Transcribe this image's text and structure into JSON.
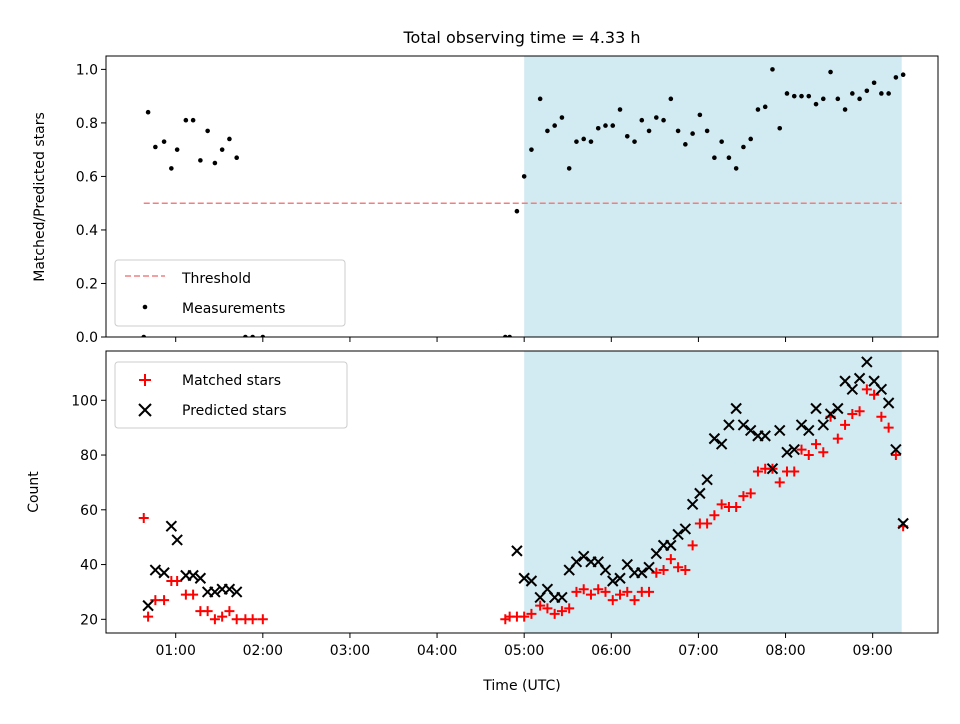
{
  "chart_data": [
    {
      "type": "scatter",
      "title": "Total observing time = 4.33 h",
      "ylabel": "Matched/Predicted stars",
      "xlabel": "",
      "ylim": [
        0.0,
        1.05
      ],
      "yticks": [
        0.0,
        0.2,
        0.4,
        0.6,
        0.8,
        1.0
      ],
      "ytick_labels": [
        "0.0",
        "0.2",
        "0.4",
        "0.6",
        "0.8",
        "1.0"
      ],
      "shaded_interval": [
        "05:00",
        "09:20"
      ],
      "shade_color": "#add8e6",
      "legend": {
        "placement": "lower-left",
        "entries": [
          "Threshold",
          "Measurements"
        ]
      },
      "threshold": {
        "name": "Threshold",
        "value": 0.5,
        "x": [
          "00:38",
          "09:20"
        ],
        "color": "#f08080",
        "style": "dashed"
      },
      "series": [
        {
          "name": "Measurements",
          "color": "#000000",
          "marker": "dot",
          "points": [
            [
              "00:38",
              0.0
            ],
            [
              "00:41",
              0.84
            ],
            [
              "00:46",
              0.71
            ],
            [
              "00:52",
              0.73
            ],
            [
              "00:57",
              0.63
            ],
            [
              "01:01",
              0.7
            ],
            [
              "01:07",
              0.81
            ],
            [
              "01:12",
              0.81
            ],
            [
              "01:17",
              0.66
            ],
            [
              "01:22",
              0.77
            ],
            [
              "01:27",
              0.65
            ],
            [
              "01:32",
              0.7
            ],
            [
              "01:37",
              0.74
            ],
            [
              "01:42",
              0.67
            ],
            [
              "01:48",
              0.0
            ],
            [
              "01:53",
              0.0
            ],
            [
              "02:00",
              0.0
            ],
            [
              "04:47",
              0.0
            ],
            [
              "04:50",
              0.0
            ],
            [
              "04:55",
              0.47
            ],
            [
              "05:00",
              0.6
            ],
            [
              "05:05",
              0.7
            ],
            [
              "05:11",
              0.89
            ],
            [
              "05:16",
              0.77
            ],
            [
              "05:21",
              0.79
            ],
            [
              "05:26",
              0.82
            ],
            [
              "05:31",
              0.63
            ],
            [
              "05:36",
              0.73
            ],
            [
              "05:41",
              0.74
            ],
            [
              "05:46",
              0.73
            ],
            [
              "05:51",
              0.78
            ],
            [
              "05:56",
              0.79
            ],
            [
              "06:01",
              0.79
            ],
            [
              "06:06",
              0.85
            ],
            [
              "06:11",
              0.75
            ],
            [
              "06:16",
              0.73
            ],
            [
              "06:21",
              0.81
            ],
            [
              "06:26",
              0.77
            ],
            [
              "06:31",
              0.82
            ],
            [
              "06:36",
              0.81
            ],
            [
              "06:41",
              0.89
            ],
            [
              "06:46",
              0.77
            ],
            [
              "06:51",
              0.72
            ],
            [
              "06:56",
              0.76
            ],
            [
              "07:01",
              0.83
            ],
            [
              "07:06",
              0.77
            ],
            [
              "07:11",
              0.67
            ],
            [
              "07:16",
              0.73
            ],
            [
              "07:21",
              0.67
            ],
            [
              "07:26",
              0.63
            ],
            [
              "07:31",
              0.71
            ],
            [
              "07:36",
              0.74
            ],
            [
              "07:41",
              0.85
            ],
            [
              "07:46",
              0.86
            ],
            [
              "07:51",
              1.0
            ],
            [
              "07:56",
              0.78
            ],
            [
              "08:01",
              0.91
            ],
            [
              "08:06",
              0.9
            ],
            [
              "08:11",
              0.9
            ],
            [
              "08:16",
              0.9
            ],
            [
              "08:21",
              0.87
            ],
            [
              "08:26",
              0.89
            ],
            [
              "08:31",
              0.99
            ],
            [
              "08:36",
              0.89
            ],
            [
              "08:41",
              0.85
            ],
            [
              "08:46",
              0.91
            ],
            [
              "08:51",
              0.89
            ],
            [
              "08:56",
              0.92
            ],
            [
              "09:01",
              0.95
            ],
            [
              "09:06",
              0.91
            ],
            [
              "09:11",
              0.91
            ],
            [
              "09:16",
              0.97
            ],
            [
              "09:21",
              0.98
            ]
          ]
        }
      ]
    },
    {
      "type": "scatter",
      "title": "",
      "xlabel": "Time (UTC)",
      "ylabel": "Count",
      "xlim": [
        "00:12",
        "09:45"
      ],
      "ylim": [
        15,
        118
      ],
      "xticks": [
        "01:00",
        "02:00",
        "03:00",
        "04:00",
        "05:00",
        "06:00",
        "07:00",
        "08:00",
        "09:00"
      ],
      "yticks": [
        20,
        40,
        60,
        80,
        100
      ],
      "ytick_labels": [
        "20",
        "40",
        "60",
        "80",
        "100"
      ],
      "shaded_interval": [
        "05:00",
        "09:20"
      ],
      "shade_color": "#add8e6",
      "legend": {
        "placement": "upper-left",
        "entries": [
          "Matched stars",
          "Predicted stars"
        ]
      },
      "series": [
        {
          "name": "Matched stars",
          "color": "#ff0000",
          "marker": "plus",
          "points": [
            [
              "00:38",
              57
            ],
            [
              "00:41",
              21
            ],
            [
              "00:46",
              27
            ],
            [
              "00:52",
              27
            ],
            [
              "00:57",
              34
            ],
            [
              "01:01",
              34
            ],
            [
              "01:07",
              29
            ],
            [
              "01:12",
              29
            ],
            [
              "01:17",
              23
            ],
            [
              "01:22",
              23
            ],
            [
              "01:27",
              20
            ],
            [
              "01:32",
              21
            ],
            [
              "01:37",
              23
            ],
            [
              "01:42",
              20
            ],
            [
              "01:48",
              20
            ],
            [
              "01:53",
              20
            ],
            [
              "02:00",
              20
            ],
            [
              "04:47",
              20
            ],
            [
              "04:50",
              21
            ],
            [
              "04:55",
              21
            ],
            [
              "05:00",
              21
            ],
            [
              "05:05",
              22
            ],
            [
              "05:11",
              25
            ],
            [
              "05:16",
              24
            ],
            [
              "05:21",
              22
            ],
            [
              "05:26",
              23
            ],
            [
              "05:31",
              24
            ],
            [
              "05:36",
              30
            ],
            [
              "05:41",
              31
            ],
            [
              "05:46",
              29
            ],
            [
              "05:51",
              31
            ],
            [
              "05:56",
              30
            ],
            [
              "06:01",
              27
            ],
            [
              "06:06",
              29
            ],
            [
              "06:11",
              30
            ],
            [
              "06:16",
              27
            ],
            [
              "06:21",
              30
            ],
            [
              "06:26",
              30
            ],
            [
              "06:31",
              37
            ],
            [
              "06:36",
              38
            ],
            [
              "06:41",
              42
            ],
            [
              "06:46",
              39
            ],
            [
              "06:51",
              38
            ],
            [
              "06:56",
              47
            ],
            [
              "07:01",
              55
            ],
            [
              "07:06",
              55
            ],
            [
              "07:11",
              58
            ],
            [
              "07:16",
              62
            ],
            [
              "07:21",
              61
            ],
            [
              "07:26",
              61
            ],
            [
              "07:31",
              65
            ],
            [
              "07:36",
              66
            ],
            [
              "07:41",
              74
            ],
            [
              "07:46",
              75
            ],
            [
              "07:51",
              75
            ],
            [
              "07:56",
              70
            ],
            [
              "08:01",
              74
            ],
            [
              "08:06",
              74
            ],
            [
              "08:11",
              82
            ],
            [
              "08:16",
              80
            ],
            [
              "08:21",
              84
            ],
            [
              "08:26",
              81
            ],
            [
              "08:31",
              94
            ],
            [
              "08:36",
              86
            ],
            [
              "08:41",
              91
            ],
            [
              "08:46",
              95
            ],
            [
              "08:51",
              96
            ],
            [
              "08:56",
              104
            ],
            [
              "09:01",
              102
            ],
            [
              "09:06",
              94
            ],
            [
              "09:11",
              90
            ],
            [
              "09:16",
              80
            ],
            [
              "09:21",
              54
            ]
          ]
        },
        {
          "name": "Predicted stars",
          "color": "#000000",
          "marker": "x",
          "points": [
            [
              "00:41",
              25
            ],
            [
              "00:46",
              38
            ],
            [
              "00:52",
              37
            ],
            [
              "00:57",
              54
            ],
            [
              "01:01",
              49
            ],
            [
              "01:07",
              36
            ],
            [
              "01:12",
              36
            ],
            [
              "01:17",
              35
            ],
            [
              "01:22",
              30
            ],
            [
              "01:27",
              30
            ],
            [
              "01:32",
              31
            ],
            [
              "01:37",
              31
            ],
            [
              "01:42",
              30
            ],
            [
              "04:55",
              45
            ],
            [
              "05:00",
              35
            ],
            [
              "05:05",
              34
            ],
            [
              "05:11",
              28
            ],
            [
              "05:16",
              31
            ],
            [
              "05:21",
              28
            ],
            [
              "05:26",
              28
            ],
            [
              "05:31",
              38
            ],
            [
              "05:36",
              41
            ],
            [
              "05:41",
              43
            ],
            [
              "05:46",
              41
            ],
            [
              "05:51",
              41
            ],
            [
              "05:56",
              38
            ],
            [
              "06:01",
              34
            ],
            [
              "06:06",
              35
            ],
            [
              "06:11",
              40
            ],
            [
              "06:16",
              37
            ],
            [
              "06:21",
              37
            ],
            [
              "06:26",
              39
            ],
            [
              "06:31",
              44
            ],
            [
              "06:36",
              47
            ],
            [
              "06:41",
              47
            ],
            [
              "06:46",
              51
            ],
            [
              "06:51",
              53
            ],
            [
              "06:56",
              62
            ],
            [
              "07:01",
              66
            ],
            [
              "07:06",
              71
            ],
            [
              "07:11",
              86
            ],
            [
              "07:16",
              84
            ],
            [
              "07:21",
              91
            ],
            [
              "07:26",
              97
            ],
            [
              "07:31",
              91
            ],
            [
              "07:36",
              89
            ],
            [
              "07:41",
              87
            ],
            [
              "07:46",
              87
            ],
            [
              "07:51",
              75
            ],
            [
              "07:56",
              89
            ],
            [
              "08:01",
              81
            ],
            [
              "08:06",
              82
            ],
            [
              "08:11",
              91
            ],
            [
              "08:16",
              89
            ],
            [
              "08:21",
              97
            ],
            [
              "08:26",
              91
            ],
            [
              "08:31",
              95
            ],
            [
              "08:36",
              97
            ],
            [
              "08:41",
              107
            ],
            [
              "08:46",
              104
            ],
            [
              "08:51",
              108
            ],
            [
              "08:56",
              114
            ],
            [
              "09:01",
              107
            ],
            [
              "09:06",
              104
            ],
            [
              "09:11",
              99
            ],
            [
              "09:16",
              82
            ],
            [
              "09:21",
              55
            ]
          ]
        }
      ]
    }
  ]
}
